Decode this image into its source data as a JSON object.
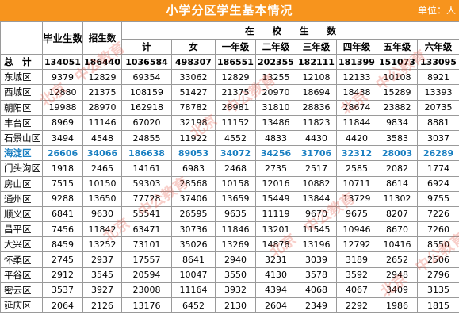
{
  "title": "小学分区学生基本情况",
  "unit": "单位：人",
  "headers": {
    "graduates": "毕业生数",
    "enrollment": "招生数",
    "in_school": "在　　校　　生　　数",
    "total": "计",
    "female": "女",
    "grades": [
      "一年级",
      "二年级",
      "三年级",
      "四年级",
      "五年级",
      "六年级"
    ]
  },
  "total_row": {
    "label": "总　计",
    "values": [
      "134051",
      "186440",
      "1036584",
      "498307",
      "186551",
      "202355",
      "182111",
      "181399",
      "151073",
      "133095"
    ]
  },
  "rows": [
    {
      "label": "东城区",
      "values": [
        "9379",
        "12829",
        "69354",
        "33062",
        "12829",
        "13255",
        "12108",
        "12133",
        "10108",
        "8921"
      ]
    },
    {
      "label": "西城区",
      "values": [
        "12880",
        "21375",
        "108159",
        "51427",
        "21375",
        "20970",
        "18694",
        "18438",
        "15289",
        "13393"
      ]
    },
    {
      "label": "朝阳区",
      "values": [
        "19988",
        "28970",
        "162918",
        "78782",
        "28981",
        "31810",
        "28836",
        "28674",
        "23882",
        "20735"
      ]
    },
    {
      "label": "丰台区",
      "values": [
        "8969",
        "11146",
        "67020",
        "32198",
        "11152",
        "13486",
        "11823",
        "11844",
        "9834",
        "8881"
      ]
    },
    {
      "label": "石景山区",
      "values": [
        "3494",
        "4548",
        "24855",
        "11922",
        "4552",
        "4833",
        "4430",
        "4420",
        "3583",
        "3037"
      ]
    },
    {
      "label": "海淀区",
      "values": [
        "26606",
        "34066",
        "186638",
        "89053",
        "34072",
        "34256",
        "31706",
        "32312",
        "28003",
        "26289"
      ]
    },
    {
      "label": "门头沟区",
      "values": [
        "1918",
        "2465",
        "14161",
        "6983",
        "2468",
        "2735",
        "2517",
        "2585",
        "2082",
        "1774"
      ]
    },
    {
      "label": "房山区",
      "values": [
        "7515",
        "10150",
        "59303",
        "28568",
        "10158",
        "12016",
        "10882",
        "10711",
        "8614",
        "6924"
      ]
    },
    {
      "label": "通州区",
      "values": [
        "9288",
        "13650",
        "77728",
        "37406",
        "13659",
        "15449",
        "13844",
        "13729",
        "11302",
        "9755"
      ]
    },
    {
      "label": "顺义区",
      "values": [
        "6841",
        "9630",
        "55541",
        "26595",
        "9635",
        "11119",
        "9670",
        "9675",
        "8207",
        "7226"
      ]
    },
    {
      "label": "昌平区",
      "values": [
        "7456",
        "11842",
        "63471",
        "30736",
        "11846",
        "13201",
        "11545",
        "10946",
        "8670",
        "7260"
      ]
    },
    {
      "label": "大兴区",
      "values": [
        "8459",
        "13252",
        "73101",
        "35026",
        "13269",
        "14878",
        "13196",
        "12792",
        "10416",
        "8550"
      ]
    },
    {
      "label": "怀柔区",
      "values": [
        "2745",
        "2937",
        "17557",
        "8641",
        "2940",
        "3231",
        "3039",
        "3189",
        "2652",
        "2506"
      ]
    },
    {
      "label": "平谷区",
      "values": [
        "2912",
        "3545",
        "20594",
        "10047",
        "3550",
        "4130",
        "3578",
        "3592",
        "2948",
        "2796"
      ]
    },
    {
      "label": "密云区",
      "values": [
        "3537",
        "3927",
        "23008",
        "11164",
        "3932",
        "4394",
        "4068",
        "4067",
        "3409",
        "3135"
      ]
    },
    {
      "label": "延庆区",
      "values": [
        "2064",
        "2126",
        "13176",
        "6452",
        "2130",
        "2604",
        "2349",
        "2292",
        "1986",
        "1815"
      ]
    }
  ],
  "highlight_row_label": "海淀区",
  "colors": {
    "title_bg": "#f7941d",
    "highlight_text": "#1a7fc1",
    "watermark": "#e6503c"
  }
}
